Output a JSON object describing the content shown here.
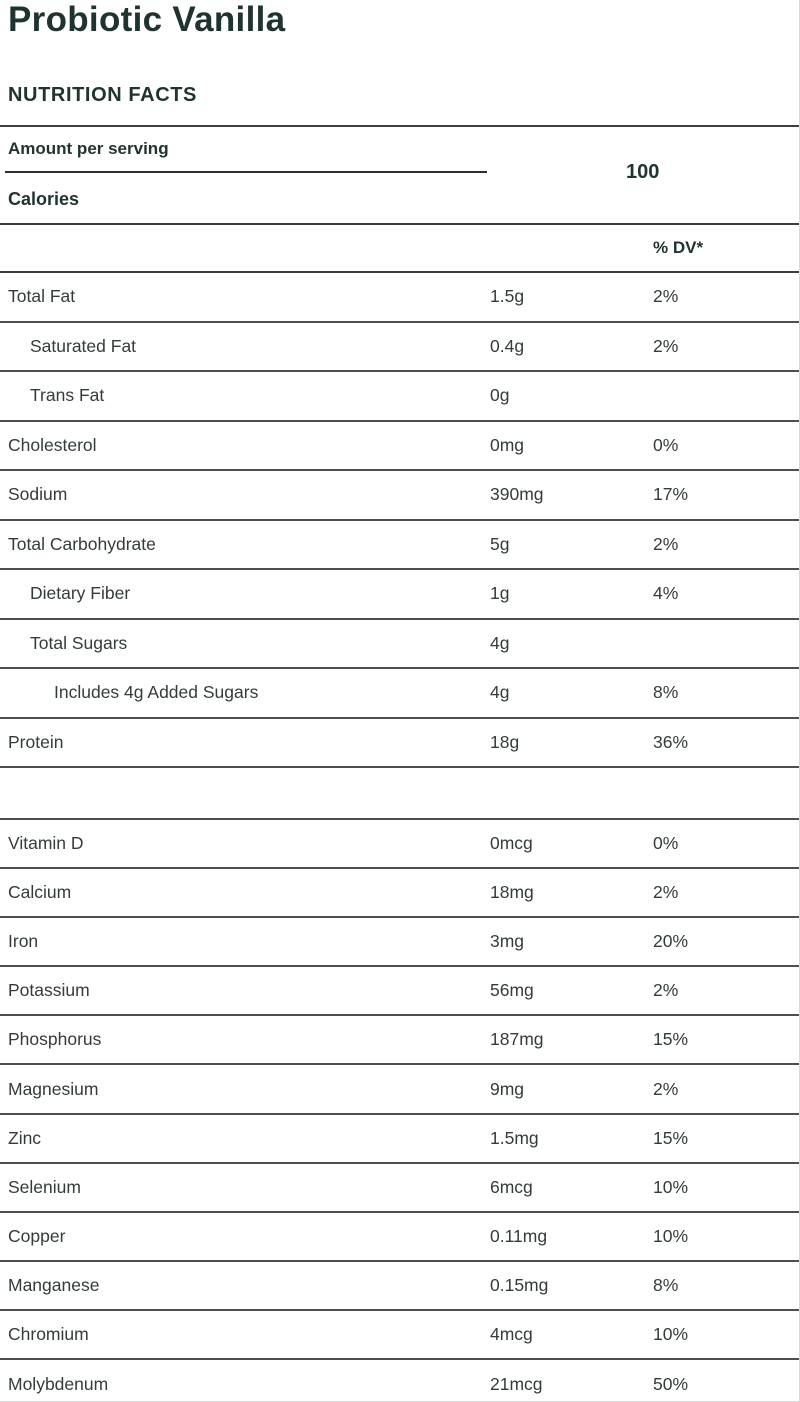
{
  "title": "Probiotic Vanilla",
  "section_header": "NUTRITION FACTS",
  "serving": {
    "amount_label": "Amount per serving",
    "calories_label": "Calories",
    "calories_value": "100"
  },
  "dv_header": "% DV*",
  "colors": {
    "heading_text": "#1f3330",
    "body_text": "#333c3b",
    "heavy_line": "#3d3d3d",
    "row_line": "#4e4e4e",
    "page_border": "#d9d9d9"
  },
  "nutrients": [
    {
      "name": "Total Fat",
      "amount": "1.5g",
      "dv": "2%",
      "indent": 0
    },
    {
      "name": "Saturated Fat",
      "amount": "0.4g",
      "dv": "2%",
      "indent": 1
    },
    {
      "name": "Trans Fat",
      "amount": "0g",
      "dv": "",
      "indent": 1
    },
    {
      "name": "Cholesterol",
      "amount": "0mg",
      "dv": "0%",
      "indent": 0
    },
    {
      "name": "Sodium",
      "amount": "390mg",
      "dv": "17%",
      "indent": 0
    },
    {
      "name": "Total Carbohydrate",
      "amount": "5g",
      "dv": "2%",
      "indent": 0
    },
    {
      "name": "Dietary Fiber",
      "amount": "1g",
      "dv": "4%",
      "indent": 1
    },
    {
      "name": "Total Sugars",
      "amount": "4g",
      "dv": "",
      "indent": 1
    },
    {
      "name": "Includes 4g Added Sugars",
      "amount": "4g",
      "dv": "8%",
      "indent": 2
    },
    {
      "name": "Protein",
      "amount": "18g",
      "dv": "36%",
      "indent": 0
    }
  ],
  "minerals": [
    {
      "name": "Vitamin D",
      "amount": "0mcg",
      "dv": "0%",
      "indent": 0
    },
    {
      "name": "Calcium",
      "amount": "18mg",
      "dv": "2%",
      "indent": 0
    },
    {
      "name": "Iron",
      "amount": "3mg",
      "dv": "20%",
      "indent": 0
    },
    {
      "name": "Potassium",
      "amount": "56mg",
      "dv": "2%",
      "indent": 0
    },
    {
      "name": "Phosphorus",
      "amount": "187mg",
      "dv": "15%",
      "indent": 0
    },
    {
      "name": "Magnesium",
      "amount": "9mg",
      "dv": "2%",
      "indent": 0
    },
    {
      "name": "Zinc",
      "amount": "1.5mg",
      "dv": "15%",
      "indent": 0
    },
    {
      "name": "Selenium",
      "amount": "6mcg",
      "dv": "10%",
      "indent": 0
    },
    {
      "name": "Copper",
      "amount": "0.11mg",
      "dv": "10%",
      "indent": 0
    },
    {
      "name": "Manganese",
      "amount": "0.15mg",
      "dv": "8%",
      "indent": 0
    },
    {
      "name": "Chromium",
      "amount": "4mcg",
      "dv": "10%",
      "indent": 0
    },
    {
      "name": "Molybdenum",
      "amount": "21mcg",
      "dv": "50%",
      "indent": 0
    }
  ]
}
